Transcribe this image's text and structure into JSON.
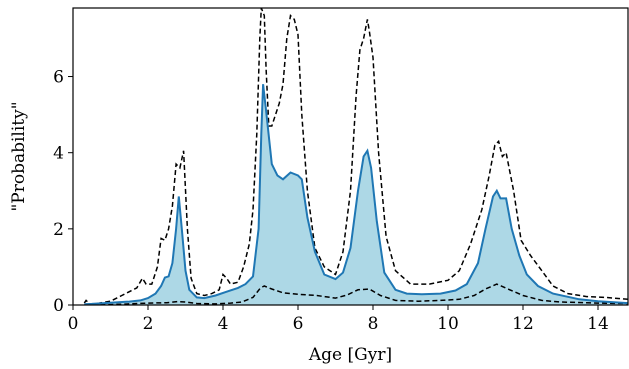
{
  "chart_data": {
    "type": "area",
    "title": "",
    "xlabel": "Age [Gyr]",
    "ylabel": "\"Probability\"",
    "xlim": [
      0,
      14.8
    ],
    "ylim": [
      0,
      7.8
    ],
    "xticks": [
      0,
      2,
      4,
      6,
      8,
      10,
      12,
      14
    ],
    "yticks": [
      0,
      2,
      4,
      6
    ],
    "grid": false,
    "legend": "none",
    "colors": {
      "fill": "#add8e6",
      "median": "#1f77b4",
      "bounds": "#000000"
    },
    "series": [
      {
        "role": "median",
        "style": "solid",
        "points": [
          [
            0.3,
            0.02
          ],
          [
            0.5,
            0.03
          ],
          [
            1.0,
            0.06
          ],
          [
            1.5,
            0.09
          ],
          [
            1.8,
            0.12
          ],
          [
            2.0,
            0.18
          ],
          [
            2.2,
            0.3
          ],
          [
            2.35,
            0.5
          ],
          [
            2.45,
            0.72
          ],
          [
            2.55,
            0.75
          ],
          [
            2.65,
            1.1
          ],
          [
            2.75,
            2.0
          ],
          [
            2.82,
            2.85
          ],
          [
            2.9,
            2.0
          ],
          [
            3.0,
            0.9
          ],
          [
            3.1,
            0.4
          ],
          [
            3.3,
            0.2
          ],
          [
            3.5,
            0.18
          ],
          [
            3.8,
            0.25
          ],
          [
            4.1,
            0.35
          ],
          [
            4.4,
            0.45
          ],
          [
            4.6,
            0.55
          ],
          [
            4.8,
            0.75
          ],
          [
            4.95,
            2.0
          ],
          [
            5.02,
            4.5
          ],
          [
            5.07,
            5.8
          ],
          [
            5.15,
            5.1
          ],
          [
            5.3,
            3.7
          ],
          [
            5.45,
            3.4
          ],
          [
            5.6,
            3.3
          ],
          [
            5.8,
            3.48
          ],
          [
            6.0,
            3.4
          ],
          [
            6.1,
            3.3
          ],
          [
            6.25,
            2.3
          ],
          [
            6.45,
            1.4
          ],
          [
            6.7,
            0.8
          ],
          [
            7.0,
            0.68
          ],
          [
            7.2,
            0.85
          ],
          [
            7.4,
            1.5
          ],
          [
            7.6,
            3.0
          ],
          [
            7.75,
            3.9
          ],
          [
            7.85,
            4.05
          ],
          [
            7.95,
            3.6
          ],
          [
            8.1,
            2.2
          ],
          [
            8.3,
            0.85
          ],
          [
            8.6,
            0.4
          ],
          [
            8.9,
            0.3
          ],
          [
            9.3,
            0.28
          ],
          [
            9.8,
            0.3
          ],
          [
            10.2,
            0.38
          ],
          [
            10.5,
            0.55
          ],
          [
            10.8,
            1.1
          ],
          [
            11.0,
            2.0
          ],
          [
            11.2,
            2.85
          ],
          [
            11.3,
            3.0
          ],
          [
            11.4,
            2.8
          ],
          [
            11.55,
            2.8
          ],
          [
            11.7,
            2.0
          ],
          [
            11.9,
            1.3
          ],
          [
            12.1,
            0.8
          ],
          [
            12.4,
            0.5
          ],
          [
            12.8,
            0.3
          ],
          [
            13.5,
            0.15
          ],
          [
            14.0,
            0.1
          ],
          [
            14.8,
            0.05
          ]
        ]
      },
      {
        "role": "upper",
        "style": "dashed",
        "points": [
          [
            0.3,
            0.05
          ],
          [
            0.35,
            0.12
          ],
          [
            0.45,
            0.02
          ],
          [
            0.7,
            0.05
          ],
          [
            1.0,
            0.1
          ],
          [
            1.3,
            0.25
          ],
          [
            1.5,
            0.35
          ],
          [
            1.7,
            0.45
          ],
          [
            1.85,
            0.7
          ],
          [
            1.95,
            0.55
          ],
          [
            2.1,
            0.55
          ],
          [
            2.25,
            1.0
          ],
          [
            2.35,
            1.75
          ],
          [
            2.45,
            1.7
          ],
          [
            2.55,
            2.0
          ],
          [
            2.65,
            2.6
          ],
          [
            2.75,
            3.7
          ],
          [
            2.85,
            3.6
          ],
          [
            2.95,
            4.05
          ],
          [
            3.05,
            2.0
          ],
          [
            3.15,
            0.7
          ],
          [
            3.3,
            0.3
          ],
          [
            3.5,
            0.25
          ],
          [
            3.7,
            0.3
          ],
          [
            3.9,
            0.4
          ],
          [
            4.0,
            0.8
          ],
          [
            4.1,
            0.7
          ],
          [
            4.2,
            0.55
          ],
          [
            4.4,
            0.6
          ],
          [
            4.55,
            1.0
          ],
          [
            4.7,
            1.6
          ],
          [
            4.8,
            2.5
          ],
          [
            4.9,
            4.5
          ],
          [
            4.98,
            7.0
          ],
          [
            5.02,
            7.8
          ],
          [
            5.1,
            7.6
          ],
          [
            5.15,
            6.2
          ],
          [
            5.22,
            4.7
          ],
          [
            5.3,
            4.7
          ],
          [
            5.5,
            5.3
          ],
          [
            5.6,
            5.8
          ],
          [
            5.7,
            7.0
          ],
          [
            5.8,
            7.6
          ],
          [
            5.9,
            7.5
          ],
          [
            6.0,
            7.1
          ],
          [
            6.1,
            5.0
          ],
          [
            6.25,
            3.0
          ],
          [
            6.45,
            1.5
          ],
          [
            6.7,
            1.0
          ],
          [
            7.0,
            0.8
          ],
          [
            7.2,
            1.4
          ],
          [
            7.4,
            3.0
          ],
          [
            7.55,
            5.5
          ],
          [
            7.65,
            6.7
          ],
          [
            7.75,
            7.0
          ],
          [
            7.85,
            7.5
          ],
          [
            7.9,
            7.2
          ],
          [
            8.0,
            6.5
          ],
          [
            8.15,
            4.0
          ],
          [
            8.35,
            1.8
          ],
          [
            8.6,
            0.9
          ],
          [
            9.0,
            0.55
          ],
          [
            9.5,
            0.55
          ],
          [
            10.0,
            0.65
          ],
          [
            10.3,
            0.9
          ],
          [
            10.6,
            1.6
          ],
          [
            10.9,
            2.5
          ],
          [
            11.1,
            3.4
          ],
          [
            11.25,
            4.2
          ],
          [
            11.35,
            4.3
          ],
          [
            11.45,
            3.9
          ],
          [
            11.55,
            4.0
          ],
          [
            11.75,
            3.0
          ],
          [
            11.95,
            1.7
          ],
          [
            12.2,
            1.3
          ],
          [
            12.5,
            0.9
          ],
          [
            12.8,
            0.5
          ],
          [
            13.2,
            0.3
          ],
          [
            13.7,
            0.22
          ],
          [
            14.2,
            0.2
          ],
          [
            14.8,
            0.15
          ]
        ]
      },
      {
        "role": "lower",
        "style": "dashed",
        "points": [
          [
            0.3,
            0.0
          ],
          [
            1.0,
            0.01
          ],
          [
            1.5,
            0.03
          ],
          [
            2.0,
            0.05
          ],
          [
            2.5,
            0.06
          ],
          [
            2.8,
            0.09
          ],
          [
            3.0,
            0.08
          ],
          [
            3.3,
            0.04
          ],
          [
            3.8,
            0.03
          ],
          [
            4.2,
            0.05
          ],
          [
            4.5,
            0.08
          ],
          [
            4.8,
            0.2
          ],
          [
            5.0,
            0.45
          ],
          [
            5.1,
            0.5
          ],
          [
            5.3,
            0.42
          ],
          [
            5.6,
            0.32
          ],
          [
            6.0,
            0.28
          ],
          [
            6.5,
            0.25
          ],
          [
            7.0,
            0.18
          ],
          [
            7.3,
            0.26
          ],
          [
            7.6,
            0.4
          ],
          [
            7.9,
            0.42
          ],
          [
            8.2,
            0.25
          ],
          [
            8.6,
            0.12
          ],
          [
            9.2,
            0.1
          ],
          [
            9.8,
            0.12
          ],
          [
            10.3,
            0.15
          ],
          [
            10.7,
            0.25
          ],
          [
            11.0,
            0.42
          ],
          [
            11.3,
            0.55
          ],
          [
            11.6,
            0.42
          ],
          [
            12.0,
            0.25
          ],
          [
            12.5,
            0.12
          ],
          [
            13.0,
            0.08
          ],
          [
            14.0,
            0.05
          ],
          [
            14.8,
            0.04
          ]
        ]
      }
    ]
  }
}
